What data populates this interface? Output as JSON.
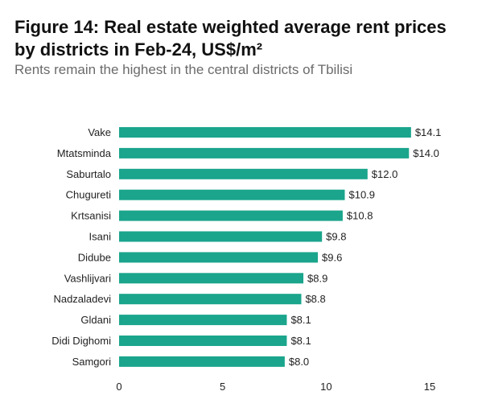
{
  "header": {
    "title_line1": "Figure 14:  Real estate weighted average rent prices",
    "title_line2": "by districts in Feb-24, US$/m²",
    "subtitle": "Rents remain the highest in the central districts of Tbilisi"
  },
  "chart_data": {
    "type": "bar",
    "orientation": "horizontal",
    "title": "Real estate weighted average rent prices by districts in Feb-24, US$/m²",
    "subtitle": "Rents remain the highest in the central districts of Tbilisi",
    "categories": [
      "Vake",
      "Mtatsminda",
      "Saburtalo",
      "Chugureti",
      "Krtsanisi",
      "Isani",
      "Didube",
      "Vashlijvari",
      "Nadzaladevi",
      "Gldani",
      "Didi Dighomi",
      "Samgori"
    ],
    "values": [
      14.1,
      14.0,
      12.0,
      10.9,
      10.8,
      9.8,
      9.6,
      8.9,
      8.8,
      8.1,
      8.1,
      8.0
    ],
    "value_labels": [
      "$14.1",
      "$14.0",
      "$12.0",
      "$10.9",
      "$10.8",
      "$9.8",
      "$9.6",
      "$8.9",
      "$8.8",
      "$8.1",
      "$8.1",
      "$8.0"
    ],
    "xticks": [
      "0",
      "5",
      "10",
      "15"
    ],
    "xlim": [
      0,
      15
    ],
    "xlabel": "",
    "ylabel": "",
    "bar_color": "#1aa58c",
    "grid": false
  }
}
